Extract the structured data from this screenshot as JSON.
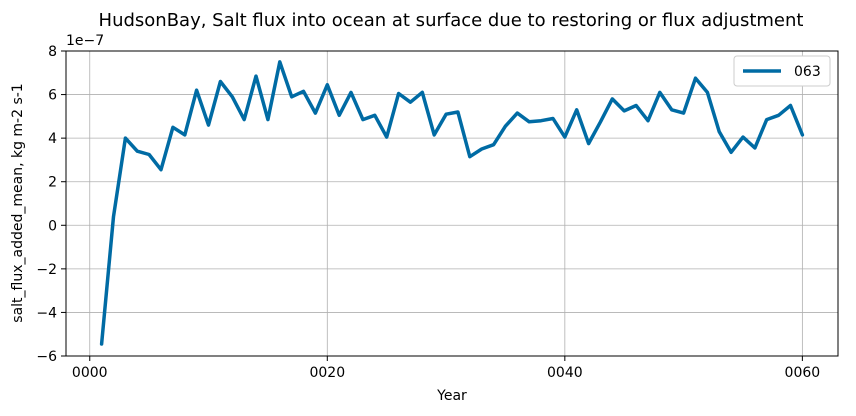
{
  "chart_data": {
    "type": "line",
    "title": "HudsonBay, Salt flux into ocean at surface due to restoring or flux adjustment",
    "xlabel": "Year",
    "ylabel": "salt_flux_added_mean, kg m-2 s-1",
    "y_offset_label": "1e−7",
    "xlim": [
      -2,
      63
    ],
    "ylim": [
      -6,
      8
    ],
    "x_ticks": [
      0,
      20,
      40,
      60
    ],
    "x_tick_labels": [
      "0000",
      "0020",
      "0040",
      "0060"
    ],
    "y_ticks": [
      -6,
      -4,
      -2,
      0,
      2,
      4,
      6,
      8
    ],
    "y_tick_labels": [
      "−6",
      "−4",
      "−2",
      "0",
      "2",
      "4",
      "6",
      "8"
    ],
    "grid": true,
    "legend_position": "top-right",
    "colors": {
      "series": "#006ba4",
      "grid": "#b0b0b0"
    },
    "x": [
      1,
      2,
      3,
      4,
      5,
      6,
      7,
      8,
      9,
      10,
      11,
      12,
      13,
      14,
      15,
      16,
      17,
      18,
      19,
      20,
      21,
      22,
      23,
      24,
      25,
      26,
      27,
      28,
      29,
      30,
      31,
      32,
      33,
      34,
      35,
      36,
      37,
      38,
      39,
      40,
      41,
      42,
      43,
      44,
      45,
      46,
      47,
      48,
      49,
      50,
      51,
      52,
      53,
      54,
      55,
      56,
      57,
      58,
      59,
      60
    ],
    "series": [
      {
        "name": "063",
        "values": [
          -5.45,
          0.4,
          4.0,
          3.4,
          3.25,
          2.55,
          4.5,
          4.15,
          6.2,
          4.6,
          6.6,
          5.9,
          4.85,
          6.85,
          4.85,
          7.5,
          5.9,
          6.15,
          5.15,
          6.45,
          5.05,
          6.1,
          4.85,
          5.05,
          4.05,
          6.05,
          5.65,
          6.1,
          4.15,
          5.1,
          5.2,
          3.15,
          3.5,
          3.7,
          4.55,
          5.15,
          4.75,
          4.8,
          4.9,
          4.05,
          5.3,
          3.75,
          4.75,
          5.8,
          5.25,
          5.5,
          4.8,
          6.1,
          5.3,
          5.15,
          6.75,
          6.1,
          4.3,
          3.35,
          4.05,
          3.55,
          4.85,
          5.05,
          5.5,
          4.15
        ]
      }
    ]
  }
}
